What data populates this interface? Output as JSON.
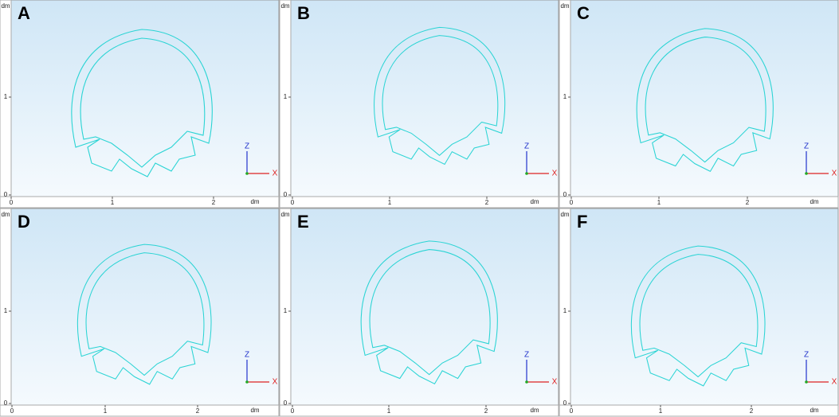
{
  "panels": [
    {
      "label": "A",
      "x_unit": "dm",
      "y_unit": "dm",
      "x_ticks": [
        "0",
        "1",
        "2"
      ],
      "y_ticks": [
        "0",
        "1"
      ],
      "axis_z": "Z",
      "axis_x": "X"
    },
    {
      "label": "B",
      "x_unit": "dm",
      "y_unit": "dm",
      "x_ticks": [
        "0",
        "1",
        "2"
      ],
      "y_ticks": [
        "0",
        "1"
      ],
      "axis_z": "Z",
      "axis_x": "X"
    },
    {
      "label": "C",
      "x_unit": "dm",
      "y_unit": "dm",
      "x_ticks": [
        "0",
        "1",
        "2"
      ],
      "y_ticks": [
        "0",
        "1"
      ],
      "axis_z": "Z",
      "axis_x": "X"
    },
    {
      "label": "D",
      "x_unit": "dm",
      "y_unit": "dm",
      "x_ticks": [
        "0",
        "1",
        "2"
      ],
      "y_ticks": [
        "0",
        "1"
      ],
      "axis_z": "Z",
      "axis_x": "X"
    },
    {
      "label": "E",
      "x_unit": "dm",
      "y_unit": "dm",
      "x_ticks": [
        "0",
        "1",
        "2"
      ],
      "y_ticks": [
        "0",
        "1"
      ],
      "axis_z": "Z",
      "axis_x": "X"
    },
    {
      "label": "F",
      "x_unit": "dm",
      "y_unit": "dm",
      "x_ticks": [
        "0",
        "1",
        "2"
      ],
      "y_ticks": [
        "0",
        "1"
      ],
      "axis_z": "Z",
      "axis_x": "X"
    }
  ]
}
